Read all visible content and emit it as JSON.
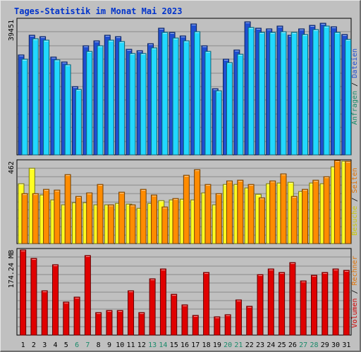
{
  "title": "Tages-Statistik im Monat Mai 2023",
  "colors": {
    "title": "#0033cc",
    "anfragen": "#22d8ff",
    "dateien": "#1f4fd0",
    "besuche": "#ffff22",
    "seiten": "#ff8c00",
    "volumen": "#e00000",
    "rechner": "#ff8000",
    "weekend": "#1a8a6a",
    "weekday": "#000000"
  },
  "chart_data": [
    {
      "type": "bar",
      "ymax_label": "39451",
      "ylim": [
        0,
        39451
      ],
      "vlabel": [
        {
          "text": "Anfragen",
          "color": "#1a8a6a"
        },
        {
          "text": " / ",
          "color": "#000000"
        },
        {
          "text": "Dateien",
          "color": "#1f4fd0"
        }
      ],
      "categories": [
        "1",
        "2",
        "3",
        "4",
        "5",
        "6",
        "7",
        "8",
        "9",
        "10",
        "11",
        "12",
        "13",
        "14",
        "15",
        "16",
        "17",
        "18",
        "19",
        "20",
        "21",
        "22",
        "23",
        "24",
        "25",
        "26",
        "27",
        "28",
        "29",
        "30",
        "31"
      ],
      "series": [
        {
          "name": "Dateien",
          "color": "#1f4fd0",
          "values": [
            29110,
            35030,
            34440,
            28550,
            27160,
            19840,
            31770,
            33240,
            34850,
            34440,
            30780,
            30450,
            32560,
            37060,
            35680,
            34640,
            38230,
            31750,
            19260,
            27870,
            30700,
            38840,
            37060,
            36850,
            37570,
            34850,
            36780,
            37740,
            38460,
            37300,
            35190
          ]
        },
        {
          "name": "Anfragen",
          "color": "#22d8ff",
          "values": [
            28020,
            33810,
            33400,
            27670,
            26300,
            19160,
            30250,
            31870,
            33540,
            33060,
            29640,
            29640,
            31250,
            35680,
            34120,
            33260,
            35990,
            30300,
            18720,
            26880,
            29310,
            37240,
            35750,
            35820,
            35950,
            35680,
            35090,
            36500,
            37500,
            35750,
            33600
          ]
        }
      ]
    },
    {
      "type": "bar",
      "ymax_label": "462",
      "ylim": [
        0,
        462
      ],
      "vlabel": [
        {
          "text": "Besuche",
          "color": "#c8c800"
        },
        {
          "text": " / ",
          "color": "#000000"
        },
        {
          "text": "Seiten",
          "color": "#e07000"
        }
      ],
      "categories": [
        "1",
        "2",
        "3",
        "4",
        "5",
        "6",
        "7",
        "8",
        "9",
        "10",
        "11",
        "12",
        "13",
        "14",
        "15",
        "16",
        "17",
        "18",
        "19",
        "20",
        "21",
        "22",
        "23",
        "24",
        "25",
        "26",
        "27",
        "28",
        "29",
        "30",
        "31"
      ],
      "series": [
        {
          "name": "Besuche",
          "color": "#ffff22",
          "values": [
            335,
            423,
            271,
            244,
            217,
            230,
            230,
            218,
            218,
            227,
            223,
            196,
            224,
            241,
            245,
            250,
            244,
            286,
            219,
            331,
            332,
            313,
            278,
            336,
            339,
            345,
            292,
            340,
            337,
            430,
            461
          ]
        },
        {
          "name": "Seiten",
          "color": "#ff8c00",
          "values": [
            279,
            280,
            304,
            302,
            385,
            265,
            285,
            333,
            218,
            288,
            219,
            305,
            272,
            207,
            252,
            384,
            414,
            330,
            279,
            352,
            354,
            333,
            258,
            350,
            390,
            264,
            305,
            355,
            377,
            465,
            461
          ]
        }
      ]
    },
    {
      "type": "bar",
      "ymax_label": "174.24 MB",
      "ylim": [
        0,
        174.24
      ],
      "vlabel": [
        {
          "text": "Volumen",
          "color": "#d00000"
        },
        {
          "text": " / ",
          "color": "#000000"
        },
        {
          "text": "Rechner",
          "color": "#e07000"
        }
      ],
      "categories": [
        "1",
        "2",
        "3",
        "4",
        "5",
        "6",
        "7",
        "8",
        "9",
        "10",
        "11",
        "12",
        "13",
        "14",
        "15",
        "16",
        "17",
        "18",
        "19",
        "20",
        "21",
        "22",
        "23",
        "24",
        "25",
        "26",
        "27",
        "28",
        "29",
        "30",
        "31"
      ],
      "series": [
        {
          "name": "Volumen",
          "color": "#e00000",
          "values": [
            174.2,
            156.7,
            90.6,
            144.2,
            67.3,
            77.7,
            162.2,
            46.4,
            50.3,
            50.3,
            90.6,
            46.4,
            115.6,
            135.0,
            83.8,
            62.5,
            40.1,
            127.7,
            37.6,
            42.3,
            71.8,
            59.2,
            124.3,
            135.0,
            127.7,
            148.6,
            110.5,
            122.2,
            127.7,
            135.0,
            132.5
          ]
        }
      ]
    }
  ],
  "days": [
    {
      "label": "1",
      "weekend": false
    },
    {
      "label": "2",
      "weekend": false
    },
    {
      "label": "3",
      "weekend": false
    },
    {
      "label": "4",
      "weekend": false
    },
    {
      "label": "5",
      "weekend": false
    },
    {
      "label": "6",
      "weekend": true
    },
    {
      "label": "7",
      "weekend": true
    },
    {
      "label": "8",
      "weekend": false
    },
    {
      "label": "9",
      "weekend": false
    },
    {
      "label": "10",
      "weekend": false
    },
    {
      "label": "11",
      "weekend": false
    },
    {
      "label": "12",
      "weekend": false
    },
    {
      "label": "13",
      "weekend": true
    },
    {
      "label": "14",
      "weekend": true
    },
    {
      "label": "15",
      "weekend": false
    },
    {
      "label": "16",
      "weekend": false
    },
    {
      "label": "17",
      "weekend": false
    },
    {
      "label": "18",
      "weekend": false
    },
    {
      "label": "19",
      "weekend": false
    },
    {
      "label": "20",
      "weekend": true
    },
    {
      "label": "21",
      "weekend": true
    },
    {
      "label": "22",
      "weekend": false
    },
    {
      "label": "23",
      "weekend": false
    },
    {
      "label": "24",
      "weekend": false
    },
    {
      "label": "25",
      "weekend": false
    },
    {
      "label": "26",
      "weekend": false
    },
    {
      "label": "27",
      "weekend": true
    },
    {
      "label": "28",
      "weekend": true
    },
    {
      "label": "29",
      "weekend": false
    },
    {
      "label": "30",
      "weekend": false
    },
    {
      "label": "31",
      "weekend": false
    }
  ]
}
